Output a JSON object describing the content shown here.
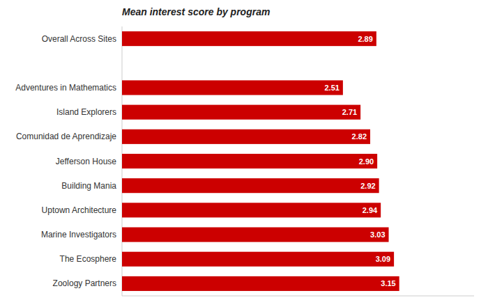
{
  "chart_data": {
    "type": "bar",
    "orientation": "horizontal",
    "title": "Mean interest score by program",
    "categories": [
      "Overall Across Sites",
      null,
      "Adventures in Mathematics",
      "Island Explorers",
      "Comunidad de Aprendizaje",
      "Jefferson House",
      "Building Mania",
      "Uptown Architecture",
      "Marine Investigators",
      "The Ecosphere",
      "Zoology Partners"
    ],
    "values": [
      2.89,
      null,
      2.51,
      2.71,
      2.82,
      2.9,
      2.92,
      2.94,
      3.03,
      3.09,
      3.15
    ],
    "value_labels": [
      "2.89",
      null,
      "2.51",
      "2.71",
      "2.82",
      "2.90",
      "2.92",
      "2.94",
      "3.03",
      "3.09",
      "3.15"
    ],
    "color": "#cc0000",
    "xlim": [
      0,
      4.0
    ],
    "data_labels": true,
    "tick_labels": "y",
    "grid": false
  }
}
